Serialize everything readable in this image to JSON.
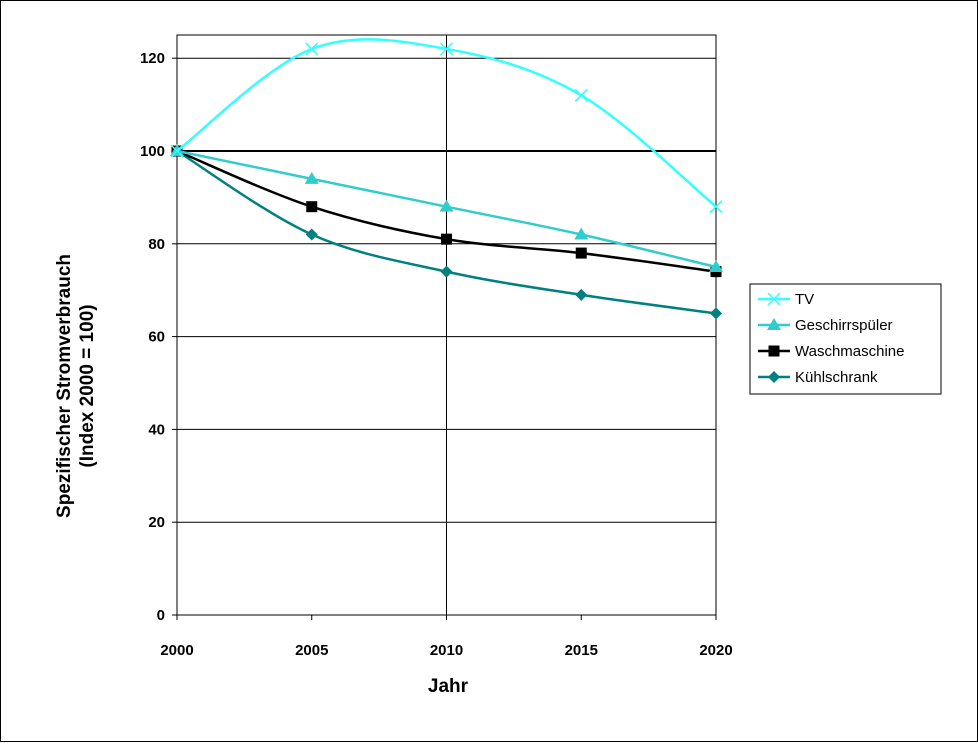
{
  "chart_data": {
    "type": "line",
    "title": "",
    "xlabel": "Jahr",
    "ylabel_line1": "Spezifischer Stromverbrauch",
    "ylabel_line2": "(Index 2000 = 100)",
    "x": [
      2000,
      2005,
      2010,
      2015,
      2020
    ],
    "xlim": [
      2000,
      2020
    ],
    "ylim": [
      0,
      125
    ],
    "y_ticks": [
      0,
      20,
      40,
      60,
      80,
      100,
      120
    ],
    "x_ticks": [
      2000,
      2005,
      2010,
      2015,
      2020
    ],
    "grid": "horizontal",
    "reference_line": 100,
    "legend_position": "right",
    "series": [
      {
        "name": "TV",
        "values": [
          100,
          122,
          122,
          112,
          88
        ],
        "color": "#33ffff",
        "marker": "x",
        "smooth": true
      },
      {
        "name": "Geschirrspüler",
        "values": [
          100,
          94,
          88,
          82,
          75
        ],
        "color": "#33cccc",
        "marker": "triangle"
      },
      {
        "name": "Waschmaschine",
        "values": [
          100,
          88,
          81,
          78,
          74
        ],
        "color": "#000000",
        "marker": "square"
      },
      {
        "name": "Kühlschrank",
        "values": [
          100,
          82,
          74,
          69,
          65
        ],
        "color": "#008080",
        "marker": "diamond"
      }
    ]
  }
}
